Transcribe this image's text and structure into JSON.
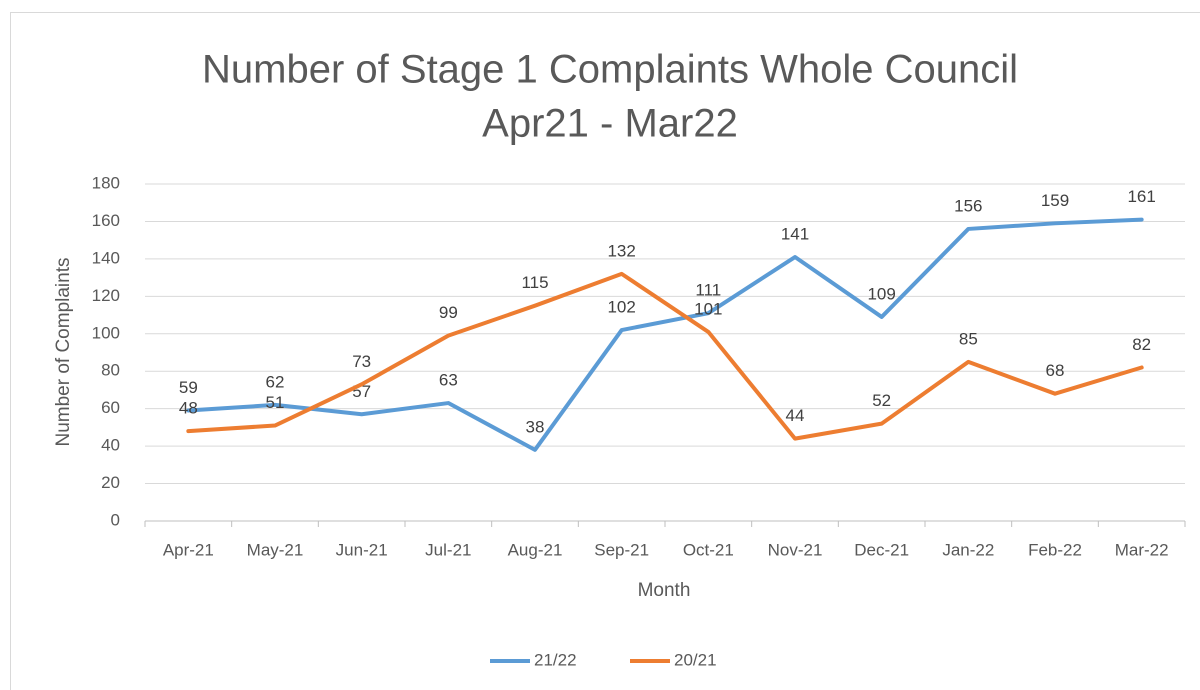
{
  "chart_data": {
    "type": "line",
    "title": [
      "Number of Stage 1 Complaints Whole Council",
      "Apr21 - Mar22"
    ],
    "x_label": "Month",
    "y_label": "Number of Complaints",
    "categories": [
      "Apr-21",
      "May-21",
      "Jun-21",
      "Jul-21",
      "Aug-21",
      "Sep-21",
      "Oct-21",
      "Nov-21",
      "Dec-21",
      "Jan-22",
      "Feb-22",
      "Mar-22"
    ],
    "series": [
      {
        "name": "21/22",
        "color": "#5b9bd5",
        "values": [
          59,
          62,
          57,
          63,
          38,
          102,
          111,
          141,
          109,
          156,
          159,
          161
        ]
      },
      {
        "name": "20/21",
        "color": "#ed7d31",
        "values": [
          48,
          51,
          73,
          99,
          115,
          132,
          101,
          44,
          52,
          85,
          68,
          82
        ]
      }
    ],
    "ylim": [
      0,
      180
    ],
    "yticks": [
      0,
      20,
      40,
      60,
      80,
      100,
      120,
      140,
      160,
      180
    ],
    "grid": true,
    "legend": "bottom"
  }
}
